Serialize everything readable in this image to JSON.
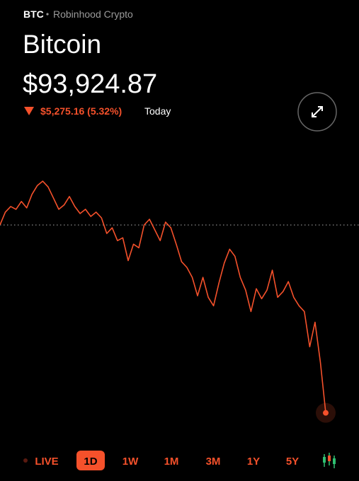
{
  "header": {
    "symbol": "BTC",
    "source": "Robinhood Crypto",
    "name": "Bitcoin",
    "price": "$93,924.87",
    "change": "$5,275.16 (5.32%)",
    "period": "Today"
  },
  "chart_data": {
    "type": "line",
    "color": "#f5512b",
    "previous_close": 99200.03,
    "ylim": [
      93600,
      100750
    ],
    "values": [
      99200,
      99560,
      99720,
      99640,
      99860,
      99680,
      100060,
      100310,
      100430,
      100270,
      99960,
      99640,
      99760,
      100000,
      99720,
      99520,
      99640,
      99440,
      99560,
      99400,
      98960,
      99120,
      98760,
      98840,
      98200,
      98660,
      98560,
      99200,
      99360,
      99060,
      98760,
      99280,
      99120,
      98660,
      98170,
      98010,
      97730,
      97210,
      97730,
      97170,
      96930,
      97570,
      98130,
      98520,
      98320,
      97730,
      97370,
      96770,
      97410,
      97130,
      97370,
      97930,
      97170,
      97330,
      97610,
      97170,
      96930,
      96770,
      95780,
      96470,
      95340,
      93924.87
    ]
  },
  "range_tabs": [
    "LIVE",
    "1D",
    "1W",
    "1M",
    "3M",
    "1Y",
    "5Y"
  ],
  "selected_tab_index": 1
}
